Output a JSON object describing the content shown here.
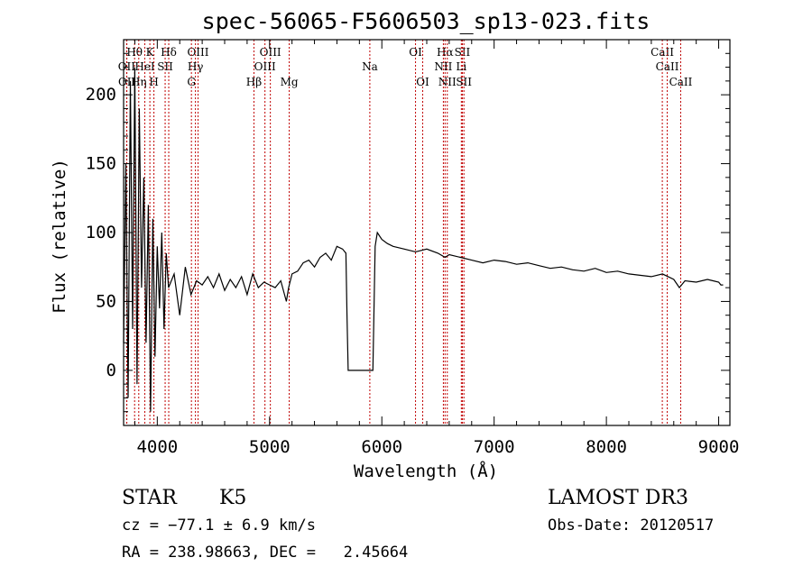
{
  "chart_data": {
    "type": "line",
    "title": "spec-56065-F5606503_sp13-023.fits",
    "xlabel": "Wavelength (Å)",
    "ylabel": "Flux (relative)",
    "xlim": [
      3700,
      9100
    ],
    "ylim": [
      -40,
      240
    ],
    "xticks": [
      4000,
      5000,
      6000,
      7000,
      8000,
      9000
    ],
    "yticks": [
      0,
      50,
      100,
      150,
      200
    ],
    "grid": false,
    "series": [
      {
        "color": "#000000",
        "x": [
          3700,
          3720,
          3740,
          3760,
          3780,
          3800,
          3820,
          3840,
          3860,
          3880,
          3900,
          3920,
          3940,
          3960,
          3980,
          4000,
          4020,
          4040,
          4060,
          4080,
          4100,
          4150,
          4200,
          4250,
          4300,
          4350,
          4400,
          4450,
          4500,
          4550,
          4600,
          4650,
          4700,
          4750,
          4800,
          4850,
          4900,
          4950,
          5000,
          5050,
          5100,
          5150,
          5170,
          5200,
          5250,
          5300,
          5350,
          5400,
          5450,
          5500,
          5550,
          5600,
          5650,
          5680,
          5690,
          5700,
          5800,
          5900,
          5920,
          5940,
          5960,
          6000,
          6050,
          6100,
          6200,
          6300,
          6400,
          6500,
          6563,
          6600,
          6700,
          6800,
          6900,
          7000,
          7100,
          7200,
          7300,
          7400,
          7500,
          7600,
          7700,
          7800,
          7900,
          8000,
          8100,
          8200,
          8300,
          8400,
          8500,
          8600,
          8650,
          8700,
          8800,
          8900,
          8950,
          9000,
          9020,
          9040
        ],
        "y": [
          20,
          150,
          -20,
          210,
          30,
          220,
          -10,
          190,
          60,
          140,
          20,
          120,
          -30,
          110,
          10,
          90,
          45,
          100,
          30,
          85,
          60,
          70,
          40,
          75,
          55,
          65,
          62,
          68,
          60,
          70,
          58,
          66,
          60,
          68,
          55,
          70,
          60,
          64,
          62,
          60,
          65,
          50,
          60,
          70,
          72,
          78,
          80,
          75,
          82,
          85,
          80,
          90,
          88,
          85,
          40,
          0,
          0,
          0,
          0,
          90,
          100,
          95,
          92,
          90,
          88,
          86,
          88,
          85,
          82,
          84,
          82,
          80,
          78,
          80,
          79,
          77,
          78,
          76,
          74,
          75,
          73,
          72,
          74,
          71,
          72,
          70,
          69,
          68,
          70,
          66,
          60,
          65,
          64,
          66,
          65,
          64,
          62,
          62
        ]
      }
    ],
    "lines": [
      {
        "label": "Hθ",
        "x": 3798,
        "row": 1
      },
      {
        "label": "K",
        "x": 3934,
        "row": 1
      },
      {
        "label": "Hδ",
        "x": 4102,
        "row": 1
      },
      {
        "label": "OIII",
        "x": 4363,
        "row": 1
      },
      {
        "label": "OIII",
        "x": 5007,
        "row": 1
      },
      {
        "label": "OI",
        "x": 6300,
        "row": 1
      },
      {
        "label": "Hα",
        "x": 6563,
        "row": 1
      },
      {
        "label": "SII",
        "x": 6717,
        "row": 1
      },
      {
        "label": "CaII",
        "x": 8498,
        "row": 1
      },
      {
        "label": "OII",
        "x": 3727,
        "row": 2
      },
      {
        "label": "HeI",
        "x": 3889,
        "row": 2
      },
      {
        "label": "SII",
        "x": 4070,
        "row": 2
      },
      {
        "label": "Hγ",
        "x": 4340,
        "row": 2
      },
      {
        "label": "OIII",
        "x": 4959,
        "row": 2
      },
      {
        "label": "Na",
        "x": 5893,
        "row": 2
      },
      {
        "label": "NII",
        "x": 6548,
        "row": 2
      },
      {
        "label": "Li",
        "x": 6708,
        "row": 2
      },
      {
        "label": "CaII",
        "x": 8542,
        "row": 2
      },
      {
        "label": "OII",
        "x": 3729,
        "row": 3
      },
      {
        "label": "Hη",
        "x": 3835,
        "row": 3
      },
      {
        "label": "H",
        "x": 3970,
        "row": 3
      },
      {
        "label": "G",
        "x": 4304,
        "row": 3
      },
      {
        "label": "Hβ",
        "x": 4861,
        "row": 3
      },
      {
        "label": "Mg",
        "x": 5175,
        "row": 3
      },
      {
        "label": "OI",
        "x": 6364,
        "row": 3
      },
      {
        "label": "NII",
        "x": 6583,
        "row": 3
      },
      {
        "label": "SII",
        "x": 6731,
        "row": 3
      },
      {
        "label": "CaII",
        "x": 8662,
        "row": 3
      }
    ]
  },
  "info": {
    "class": "STAR",
    "subclass": "K5",
    "survey": "LAMOST DR3",
    "cz": "cz = −77.1 ± 6.9 km/s",
    "obs_date": "Obs-Date: 20120517",
    "coords": "RA = 238.98663, DEC =   2.45664"
  }
}
